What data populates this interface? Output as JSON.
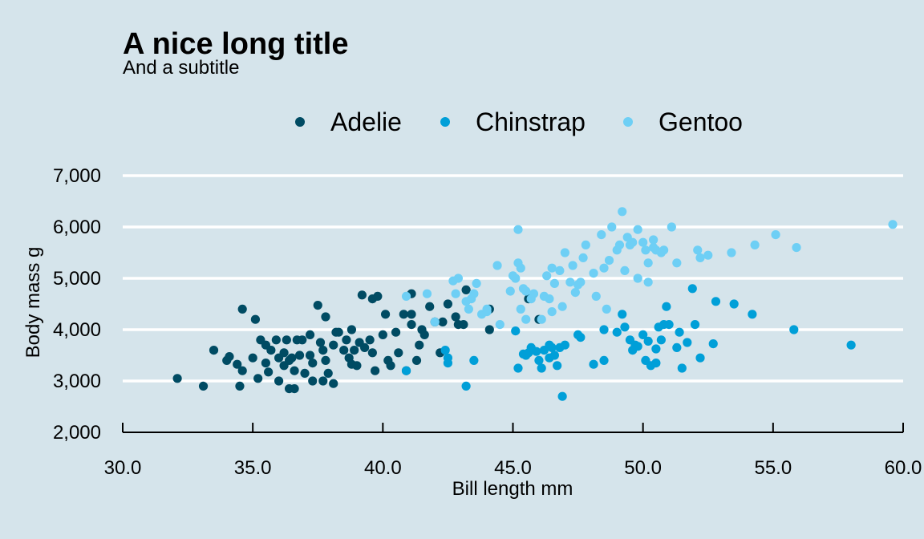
{
  "chart_data": {
    "type": "scatter",
    "title": "A nice long title",
    "subtitle": "And a subtitle",
    "xlabel": "Bill length mm",
    "ylabel": "Body mass g",
    "xlim": [
      30,
      60
    ],
    "ylim": [
      2000,
      7000
    ],
    "x_ticks": [
      "30.0",
      "35.0",
      "40.0",
      "45.0",
      "50.0",
      "55.0",
      "60.0"
    ],
    "y_ticks": [
      "2,000",
      "3,000",
      "4,000",
      "5,000",
      "6,000",
      "7,000"
    ],
    "grid": "horizontal",
    "legend_position": "top",
    "series": [
      {
        "name": "Adelie",
        "color": "#004b63",
        "points": [
          [
            32.1,
            3050
          ],
          [
            33.1,
            2900
          ],
          [
            33.5,
            3600
          ],
          [
            34.0,
            3400
          ],
          [
            34.1,
            3475
          ],
          [
            34.4,
            3325
          ],
          [
            34.5,
            2900
          ],
          [
            34.6,
            4400
          ],
          [
            34.6,
            3200
          ],
          [
            35.0,
            3450
          ],
          [
            35.1,
            4200
          ],
          [
            35.2,
            3050
          ],
          [
            35.3,
            3800
          ],
          [
            35.5,
            3350
          ],
          [
            35.5,
            3700
          ],
          [
            35.6,
            3175
          ],
          [
            35.7,
            3600
          ],
          [
            35.9,
            3800
          ],
          [
            36.0,
            3450
          ],
          [
            36.0,
            3000
          ],
          [
            36.2,
            3550
          ],
          [
            36.2,
            3300
          ],
          [
            36.3,
            3800
          ],
          [
            36.4,
            2850
          ],
          [
            36.5,
            3450
          ],
          [
            36.6,
            3200
          ],
          [
            36.6,
            2850
          ],
          [
            36.7,
            3800
          ],
          [
            36.8,
            3500
          ],
          [
            36.9,
            3800
          ],
          [
            37.0,
            3150
          ],
          [
            37.2,
            3500
          ],
          [
            37.3,
            3350
          ],
          [
            37.3,
            3000
          ],
          [
            37.5,
            4475
          ],
          [
            37.6,
            3750
          ],
          [
            37.7,
            3600
          ],
          [
            37.7,
            3000
          ],
          [
            37.8,
            3400
          ],
          [
            37.8,
            4250
          ],
          [
            37.9,
            3150
          ],
          [
            38.1,
            3700
          ],
          [
            38.1,
            2950
          ],
          [
            38.2,
            3950
          ],
          [
            38.3,
            3950
          ],
          [
            38.5,
            3600
          ],
          [
            38.6,
            3800
          ],
          [
            38.7,
            3450
          ],
          [
            38.8,
            3325
          ],
          [
            38.9,
            3600
          ],
          [
            39.0,
            3300
          ],
          [
            39.1,
            3750
          ],
          [
            39.2,
            4675
          ],
          [
            39.3,
            3650
          ],
          [
            39.5,
            3800
          ],
          [
            39.6,
            4600
          ],
          [
            39.7,
            3200
          ],
          [
            39.8,
            4650
          ],
          [
            40.2,
            3400
          ],
          [
            40.3,
            3300
          ],
          [
            40.5,
            3950
          ],
          [
            40.6,
            3550
          ],
          [
            40.8,
            4300
          ],
          [
            40.9,
            3200
          ],
          [
            41.1,
            4100
          ],
          [
            41.1,
            4700
          ],
          [
            41.3,
            3400
          ],
          [
            41.4,
            3700
          ],
          [
            41.5,
            4000
          ],
          [
            41.6,
            3900
          ],
          [
            41.8,
            4450
          ],
          [
            42.0,
            4150
          ],
          [
            42.2,
            3550
          ],
          [
            42.5,
            4500
          ],
          [
            42.8,
            4250
          ],
          [
            42.9,
            4100
          ],
          [
            43.1,
            4100
          ],
          [
            43.2,
            4775
          ],
          [
            44.1,
            4000
          ],
          [
            44.1,
            4400
          ],
          [
            45.6,
            4600
          ],
          [
            46.0,
            4200
          ],
          [
            40.1,
            4300
          ],
          [
            38.8,
            4000
          ],
          [
            37.2,
            3900
          ],
          [
            39.6,
            3550
          ],
          [
            36.4,
            3400
          ],
          [
            41.1,
            4300
          ],
          [
            42.3,
            4150
          ],
          [
            40.0,
            3900
          ]
        ]
      },
      {
        "name": "Chinstrap",
        "color": "#009fd8",
        "points": [
          [
            40.9,
            3200
          ],
          [
            42.4,
            3600
          ],
          [
            42.5,
            3350
          ],
          [
            43.2,
            2900
          ],
          [
            43.5,
            3400
          ],
          [
            45.2,
            3250
          ],
          [
            45.4,
            3525
          ],
          [
            45.5,
            3500
          ],
          [
            45.6,
            3550
          ],
          [
            45.7,
            3650
          ],
          [
            45.9,
            3575
          ],
          [
            46.0,
            3400
          ],
          [
            46.1,
            3250
          ],
          [
            46.2,
            3600
          ],
          [
            46.4,
            3700
          ],
          [
            46.5,
            3650
          ],
          [
            46.6,
            3500
          ],
          [
            46.7,
            3300
          ],
          [
            46.8,
            3650
          ],
          [
            46.9,
            2700
          ],
          [
            47.0,
            3700
          ],
          [
            47.5,
            3900
          ],
          [
            47.6,
            3850
          ],
          [
            48.1,
            3325
          ],
          [
            48.5,
            3400
          ],
          [
            49.0,
            3950
          ],
          [
            49.2,
            4300
          ],
          [
            49.3,
            4050
          ],
          [
            49.5,
            3800
          ],
          [
            49.6,
            3600
          ],
          [
            49.7,
            3700
          ],
          [
            49.8,
            3675
          ],
          [
            50.0,
            3900
          ],
          [
            50.1,
            3400
          ],
          [
            50.2,
            3775
          ],
          [
            50.3,
            3300
          ],
          [
            50.5,
            3350
          ],
          [
            50.6,
            4050
          ],
          [
            50.7,
            3800
          ],
          [
            50.8,
            4100
          ],
          [
            50.9,
            4450
          ],
          [
            51.0,
            4100
          ],
          [
            51.3,
            3650
          ],
          [
            51.4,
            3950
          ],
          [
            51.5,
            3250
          ],
          [
            51.7,
            3750
          ],
          [
            52.0,
            4100
          ],
          [
            52.2,
            3450
          ],
          [
            52.7,
            3725
          ],
          [
            52.8,
            4550
          ],
          [
            53.5,
            4500
          ],
          [
            54.2,
            4300
          ],
          [
            55.8,
            4000
          ],
          [
            58.0,
            3700
          ],
          [
            45.1,
            3975
          ],
          [
            48.5,
            4000
          ],
          [
            46.4,
            3450
          ],
          [
            42.5,
            3450
          ],
          [
            50.5,
            3625
          ],
          [
            51.9,
            4800
          ]
        ]
      },
      {
        "name": "Gentoo",
        "color": "#6ecff5",
        "points": [
          [
            40.9,
            4650
          ],
          [
            41.7,
            4700
          ],
          [
            42.0,
            4150
          ],
          [
            42.7,
            4950
          ],
          [
            42.8,
            4700
          ],
          [
            42.9,
            5000
          ],
          [
            43.2,
            4550
          ],
          [
            43.3,
            4400
          ],
          [
            43.4,
            4600
          ],
          [
            43.5,
            4700
          ],
          [
            43.6,
            4900
          ],
          [
            43.8,
            4300
          ],
          [
            44.0,
            4350
          ],
          [
            44.4,
            5250
          ],
          [
            44.5,
            4100
          ],
          [
            44.9,
            4750
          ],
          [
            45.0,
            5050
          ],
          [
            45.1,
            5000
          ],
          [
            45.2,
            5300
          ],
          [
            45.2,
            5950
          ],
          [
            45.3,
            4400
          ],
          [
            45.4,
            4800
          ],
          [
            45.5,
            4750
          ],
          [
            45.7,
            4600
          ],
          [
            45.8,
            4700
          ],
          [
            46.1,
            4200
          ],
          [
            46.2,
            4650
          ],
          [
            46.3,
            5050
          ],
          [
            46.4,
            4600
          ],
          [
            46.5,
            4350
          ],
          [
            46.6,
            4900
          ],
          [
            46.8,
            5150
          ],
          [
            47.0,
            5500
          ],
          [
            47.2,
            4925
          ],
          [
            47.3,
            5250
          ],
          [
            47.5,
            4875
          ],
          [
            47.7,
            5400
          ],
          [
            47.8,
            5650
          ],
          [
            48.1,
            5100
          ],
          [
            48.2,
            4650
          ],
          [
            48.4,
            5850
          ],
          [
            48.5,
            5200
          ],
          [
            48.7,
            5350
          ],
          [
            48.8,
            6000
          ],
          [
            49.0,
            5550
          ],
          [
            49.1,
            5650
          ],
          [
            49.2,
            6300
          ],
          [
            49.4,
            5800
          ],
          [
            49.5,
            5650
          ],
          [
            49.6,
            5700
          ],
          [
            49.8,
            5950
          ],
          [
            50.0,
            5700
          ],
          [
            50.1,
            5550
          ],
          [
            50.2,
            5300
          ],
          [
            50.4,
            5750
          ],
          [
            50.5,
            5550
          ],
          [
            50.7,
            5500
          ],
          [
            50.8,
            5550
          ],
          [
            51.1,
            6000
          ],
          [
            51.3,
            5300
          ],
          [
            52.1,
            5550
          ],
          [
            52.2,
            5400
          ],
          [
            52.5,
            5450
          ],
          [
            53.4,
            5500
          ],
          [
            54.3,
            5650
          ],
          [
            55.1,
            5850
          ],
          [
            55.9,
            5600
          ],
          [
            59.6,
            6050
          ],
          [
            45.5,
            4200
          ],
          [
            46.9,
            4450
          ],
          [
            47.4,
            4725
          ],
          [
            48.6,
            4400
          ],
          [
            49.3,
            5150
          ],
          [
            49.8,
            5000
          ],
          [
            44.0,
            4400
          ],
          [
            45.3,
            5200
          ],
          [
            46.5,
            5200
          ],
          [
            50.4,
            5600
          ],
          [
            47.6,
            4925
          ],
          [
            50.2,
            4925
          ]
        ]
      }
    ]
  }
}
